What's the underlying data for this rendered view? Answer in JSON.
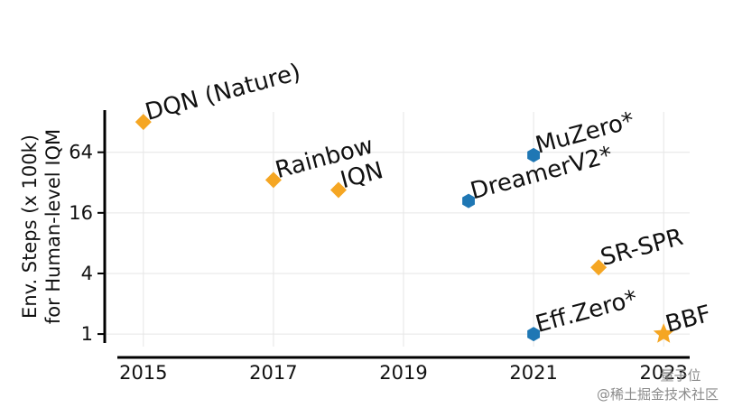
{
  "chart_data": {
    "type": "scatter",
    "title": "",
    "xlabel": "",
    "ylabel_lines": [
      "Env. Steps (x 100k)",
      "for Human-level IQM"
    ],
    "y_scale": "log2",
    "xlim": [
      2014.6,
      2023.4
    ],
    "ylim": [
      0.72,
      190
    ],
    "x_ticks": [
      {
        "value": 2015,
        "label": "2015"
      },
      {
        "value": 2017,
        "label": "2017"
      },
      {
        "value": 2019,
        "label": "2019"
      },
      {
        "value": 2021,
        "label": "2021"
      },
      {
        "value": 2023,
        "label": "2023"
      }
    ],
    "y_ticks": [
      {
        "value": 1,
        "label": "1"
      },
      {
        "value": 4,
        "label": "4"
      },
      {
        "value": 16,
        "label": "16"
      },
      {
        "value": 64,
        "label": "64"
      }
    ],
    "grid": true,
    "points": [
      {
        "name": "dqn-nature",
        "label": "DQN (Nature)",
        "x": 2015,
        "y": 128,
        "marker": "diamond",
        "color": "#F5A623"
      },
      {
        "name": "rainbow",
        "label": "Rainbow",
        "x": 2017,
        "y": 34,
        "marker": "diamond",
        "color": "#F5A623"
      },
      {
        "name": "iqn",
        "label": "IQN",
        "x": 2018,
        "y": 27,
        "marker": "diamond",
        "color": "#F5A623"
      },
      {
        "name": "muzero",
        "label": "MuZero*",
        "x": 2021,
        "y": 60,
        "marker": "hexagon",
        "color": "#1F77B4"
      },
      {
        "name": "dreamerv2",
        "label": "DreamerV2*",
        "x": 2020,
        "y": 21,
        "marker": "hexagon",
        "color": "#1F77B4"
      },
      {
        "name": "sr-spr",
        "label": "SR-SPR",
        "x": 2022,
        "y": 4.6,
        "marker": "diamond",
        "color": "#F5A623"
      },
      {
        "name": "eff-zero",
        "label": "Eff.Zero*",
        "x": 2021,
        "y": 1.0,
        "marker": "hexagon",
        "color": "#1F77B4"
      },
      {
        "name": "bbf",
        "label": "BBF",
        "x": 2023,
        "y": 1.0,
        "marker": "star",
        "color": "#F5A623"
      }
    ]
  },
  "watermark": {
    "line1": "量子位",
    "line2": "@稀土掘金技术社区"
  }
}
